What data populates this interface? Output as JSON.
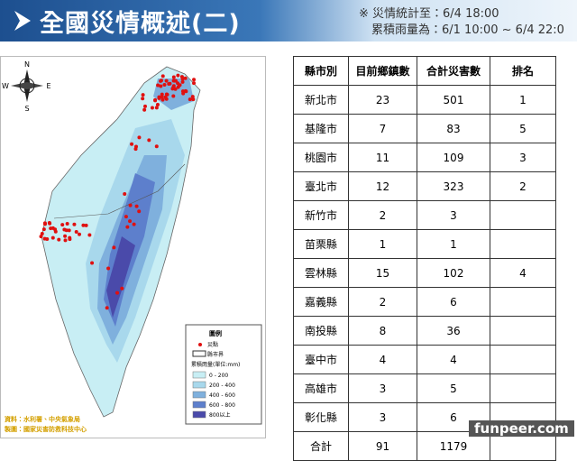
{
  "header": {
    "title": "全國災情概述(二)",
    "note_lines": [
      "※ 災情統計至：6/4 18:00",
      "累積雨量為：6/1 10:00 ~ 6/4 22:0"
    ]
  },
  "map": {
    "compass": [
      "N",
      "S",
      "E",
      "W"
    ],
    "legend": {
      "title": "圖例",
      "items": [
        "災點",
        "縣市界"
      ],
      "rain_title": "累積雨量(單位:mm)",
      "rain_classes": [
        "0 - 200",
        "200 - 400",
        "400 - 600",
        "600 - 800",
        "800以上"
      ]
    },
    "credits": [
      "資料：水利署、中央氣象局",
      "製圖：國家災害防救科技中心"
    ]
  },
  "table": {
    "columns": [
      "縣市別",
      "目前鄉鎮數",
      "合計災害數",
      "排名"
    ],
    "rows": [
      [
        "新北市",
        23,
        501,
        1
      ],
      [
        "基隆市",
        7,
        83,
        5
      ],
      [
        "桃園市",
        11,
        109,
        3
      ],
      [
        "臺北市",
        12,
        323,
        2
      ],
      [
        "新竹市",
        2,
        3
      ],
      [
        "苗栗縣",
        1,
        1
      ],
      [
        "雲林縣",
        15,
        102,
        4
      ],
      [
        "嘉義縣",
        2,
        6
      ],
      [
        "南投縣",
        8,
        36
      ],
      [
        "臺中市",
        4,
        4
      ],
      [
        "高雄市",
        3,
        5
      ],
      [
        "彰化縣",
        3,
        6
      ],
      [
        "合計",
        91,
        1179
      ]
    ]
  },
  "watermark": "funpeer.com"
}
